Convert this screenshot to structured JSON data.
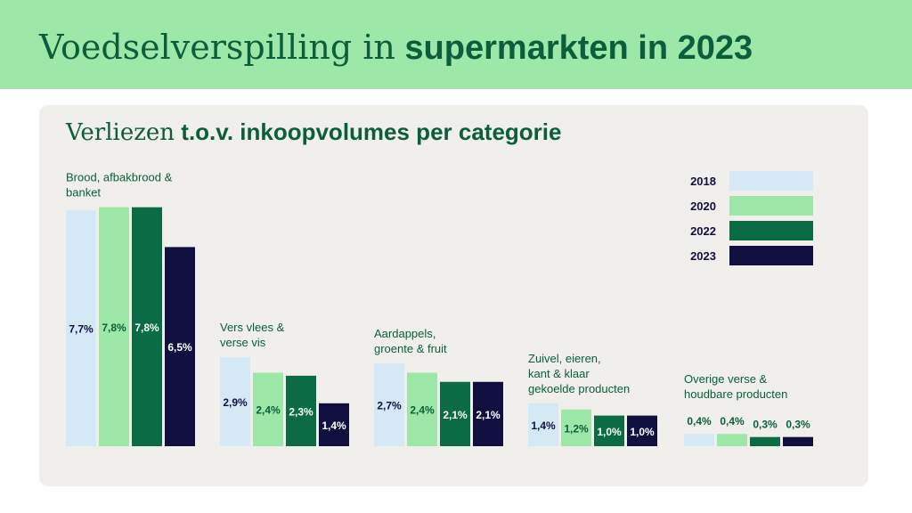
{
  "header": {
    "title_light": "Voedselverspilling in",
    "title_bold": "supermarkten in 2023"
  },
  "colors": {
    "2018": "#d4e8f6",
    "2020": "#9de8a9",
    "2022": "#0b6b44",
    "2023": "#110f40",
    "text_dark": "#110f40",
    "text_green": "#0b5e3c"
  },
  "chart_data": {
    "type": "bar",
    "title_light": "Verliezen",
    "title_bold": "t.o.v. inkoopvolumes per categorie",
    "unit": "%",
    "series_names": [
      "2018",
      "2020",
      "2022",
      "2023"
    ],
    "categories": [
      {
        "label_lines": [
          "Brood, afbakbrood &",
          "banket"
        ],
        "values": [
          7.7,
          7.8,
          7.8,
          6.5
        ],
        "value_labels": [
          "7,7%",
          "7,8%",
          "7,8%",
          "6,5%"
        ]
      },
      {
        "label_lines": [
          "Vers vlees &",
          "verse vis"
        ],
        "values": [
          2.9,
          2.4,
          2.3,
          1.4
        ],
        "value_labels": [
          "2,9%",
          "2,4%",
          "2,3%",
          "1,4%"
        ]
      },
      {
        "label_lines": [
          "Aardappels,",
          "groente & fruit"
        ],
        "values": [
          2.7,
          2.4,
          2.1,
          2.1
        ],
        "value_labels": [
          "2,7%",
          "2,4%",
          "2,1%",
          "2,1%"
        ]
      },
      {
        "label_lines": [
          "Zuivel, eieren,",
          "kant & klaar",
          "gekoelde producten"
        ],
        "values": [
          1.4,
          1.2,
          1.0,
          1.0
        ],
        "value_labels": [
          "1,4%",
          "1,2%",
          "1,0%",
          "1,0%"
        ]
      },
      {
        "label_lines": [
          "Overige verse &",
          "houdbare producten"
        ],
        "values": [
          0.4,
          0.4,
          0.3,
          0.3
        ],
        "value_labels": [
          "0,4%",
          "0,4%",
          "0,3%",
          "0,3%"
        ]
      }
    ],
    "legend": [
      "2018",
      "2020",
      "2022",
      "2023"
    ],
    "legend_position": "top-right",
    "grid": false
  }
}
